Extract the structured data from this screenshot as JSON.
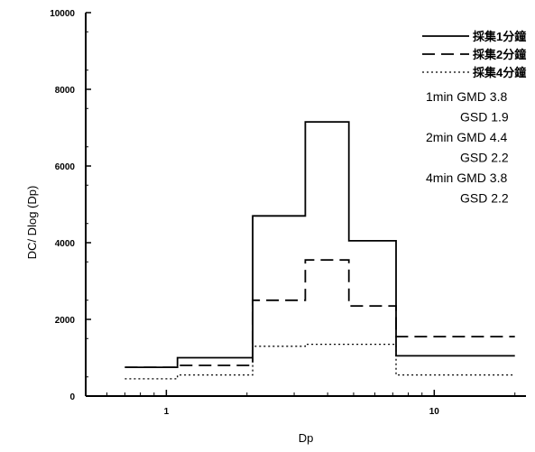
{
  "chart_data": {
    "type": "line",
    "xlabel": "Dp",
    "ylabel": "DC/ Dlog (Dp)",
    "x_scale": "log",
    "xlim": [
      0.5,
      22
    ],
    "ylim": [
      0,
      10000
    ],
    "y_ticks": [
      0,
      2000,
      4000,
      6000,
      8000,
      10000
    ],
    "y_tick_labels": [
      "0",
      "2000",
      "4000",
      "6000",
      "8000",
      "10000"
    ],
    "x_ticks": [
      1,
      10
    ],
    "x_tick_labels": [
      "1",
      "10"
    ],
    "legend_position": "top-right",
    "grid": false,
    "series": [
      {
        "name": "採集1分鐘",
        "style": "solid",
        "points": [
          [
            0.7,
            750
          ],
          [
            1.1,
            1000
          ],
          [
            2.1,
            4700
          ],
          [
            3.3,
            7150
          ],
          [
            4.8,
            4050
          ],
          [
            7.2,
            1050
          ],
          [
            20,
            1050
          ]
        ]
      },
      {
        "name": "採集2分鐘",
        "style": "dashed",
        "points": [
          [
            0.7,
            750
          ],
          [
            1.1,
            800
          ],
          [
            2.1,
            2500
          ],
          [
            3.3,
            3550
          ],
          [
            4.8,
            2350
          ],
          [
            7.2,
            1550
          ],
          [
            20,
            1550
          ]
        ]
      },
      {
        "name": "採集4分鐘",
        "style": "dotted",
        "points": [
          [
            0.7,
            450
          ],
          [
            1.1,
            550
          ],
          [
            2.1,
            1300
          ],
          [
            3.3,
            1350
          ],
          [
            4.8,
            1350
          ],
          [
            7.2,
            550
          ],
          [
            20,
            550
          ]
        ]
      }
    ],
    "annotations": [
      "1min GMD 3.8",
      "GSD 1.9",
      "2min GMD 4.4",
      "GSD 2.2",
      "4min GMD 3.8",
      "GSD 2.2"
    ]
  }
}
